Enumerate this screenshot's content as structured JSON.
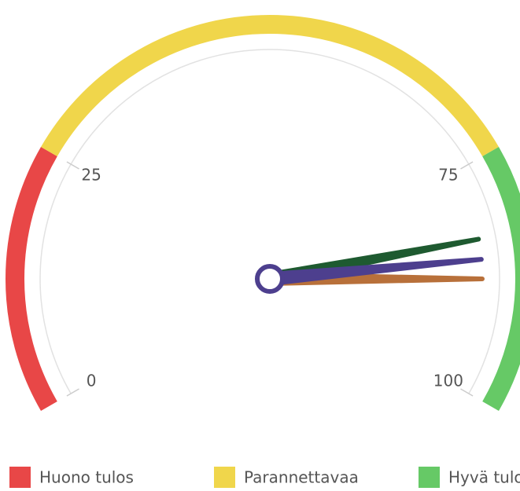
{
  "chart_data": {
    "type": "gauge",
    "ylim": [
      0,
      100
    ],
    "yticks": [
      0,
      25,
      75,
      100
    ],
    "bands": [
      {
        "name": "Huono tulos",
        "color": "#e84747",
        "from": 0,
        "to": 25
      },
      {
        "name": "Parannettavaa",
        "color": "#f0d64b",
        "from": 25,
        "to": 75
      },
      {
        "name": "Hyvä tulos",
        "color": "#66c966",
        "from": 75,
        "to": 100
      }
    ],
    "needles": [
      {
        "color": "#1e5a30",
        "value": 83
      },
      {
        "color": "#b8703a",
        "value": 87.5
      },
      {
        "color": "#4d3f8e",
        "value": 85.3
      }
    ]
  }
}
